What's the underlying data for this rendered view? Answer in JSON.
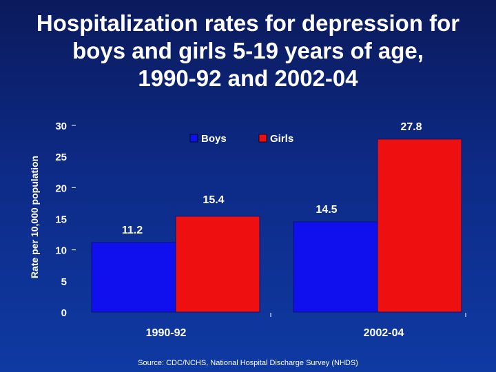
{
  "title": {
    "line1": "Hospitalization rates for depression for",
    "line2": "boys and girls 5-19 years of age,",
    "line3": "1990-92 and 2002-04"
  },
  "source": "Source:  CDC/NCHS, National Hospital Discharge Survey (NHDS)",
  "colors": {
    "boys": "#1010ee",
    "girls": "#ee1010"
  },
  "chart_data": {
    "type": "bar",
    "title": "Hospitalization rates for depression for boys and girls 5-19 years of age, 1990-92 and 2002-04",
    "xlabel": "",
    "ylabel": "Rate per 10,000 population",
    "ylim": [
      0,
      30
    ],
    "yticks": [
      0,
      5,
      10,
      15,
      20,
      25,
      30
    ],
    "categories": [
      "1990-92",
      "2002-04"
    ],
    "series": [
      {
        "name": "Boys",
        "values": [
          11.2,
          14.5
        ],
        "labels": [
          "11.2",
          "14.5"
        ]
      },
      {
        "name": "Girls",
        "values": [
          15.4,
          27.8
        ],
        "labels": [
          "15.4",
          "27.8"
        ]
      }
    ],
    "legend": "top-center",
    "grid": false
  }
}
